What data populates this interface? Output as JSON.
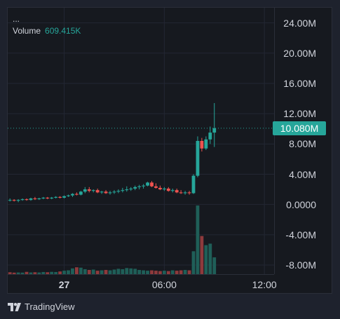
{
  "legend": {
    "dots": "...",
    "volume_label": "Volume",
    "volume_value": "609.415K"
  },
  "last_price": {
    "label": "10.080M",
    "value": 10.08
  },
  "colors": {
    "up": "#26a69a",
    "down": "#ef5350",
    "up_volume": "#1f5f58",
    "down_volume": "#8e3a3c",
    "grid": "#232733",
    "last_line": "#26a69a"
  },
  "brand": {
    "name": "TradingView",
    "icon": "tradingview-logo-icon"
  },
  "chart_data": {
    "type": "candlestick",
    "y_ticks": [
      {
        "label": "24.00M",
        "value": 24
      },
      {
        "label": "20.00M",
        "value": 20
      },
      {
        "label": "16.00M",
        "value": 16
      },
      {
        "label": "12.00M",
        "value": 12
      },
      {
        "label": "8.00M",
        "value": 8
      },
      {
        "label": "4.00M",
        "value": 4
      },
      {
        "label": "0.0000",
        "value": 0
      },
      {
        "label": "-4.00M",
        "value": -4
      },
      {
        "label": "-8.00M",
        "value": -8
      }
    ],
    "x_ticks": [
      {
        "label": "27",
        "bold": true,
        "index": 13
      },
      {
        "label": "06:00",
        "index": 37
      },
      {
        "label": "12:00",
        "index": 61
      }
    ],
    "ylim": [
      -9.2,
      26.0
    ],
    "bar_count": 66,
    "candles": [
      {
        "o": 0.6,
        "h": 0.8,
        "l": 0.4,
        "c": 0.6
      },
      {
        "o": 0.6,
        "h": 0.7,
        "l": 0.4,
        "c": 0.5
      },
      {
        "o": 0.5,
        "h": 0.7,
        "l": 0.3,
        "c": 0.6
      },
      {
        "o": 0.6,
        "h": 0.8,
        "l": 0.5,
        "c": 0.7
      },
      {
        "o": 0.7,
        "h": 0.8,
        "l": 0.5,
        "c": 0.6
      },
      {
        "o": 0.6,
        "h": 0.9,
        "l": 0.5,
        "c": 0.8
      },
      {
        "o": 0.8,
        "h": 1.0,
        "l": 0.6,
        "c": 0.7
      },
      {
        "o": 0.7,
        "h": 0.9,
        "l": 0.6,
        "c": 0.8
      },
      {
        "o": 0.8,
        "h": 1.0,
        "l": 0.7,
        "c": 0.9
      },
      {
        "o": 0.9,
        "h": 1.0,
        "l": 0.7,
        "c": 0.8
      },
      {
        "o": 0.8,
        "h": 1.0,
        "l": 0.7,
        "c": 0.9
      },
      {
        "o": 0.9,
        "h": 1.1,
        "l": 0.8,
        "c": 1.0
      },
      {
        "o": 1.0,
        "h": 1.1,
        "l": 0.8,
        "c": 0.9
      },
      {
        "o": 0.9,
        "h": 1.2,
        "l": 0.8,
        "c": 1.1
      },
      {
        "o": 1.1,
        "h": 1.3,
        "l": 1.0,
        "c": 1.2
      },
      {
        "o": 1.2,
        "h": 1.5,
        "l": 1.0,
        "c": 1.4
      },
      {
        "o": 1.4,
        "h": 1.6,
        "l": 1.2,
        "c": 1.3
      },
      {
        "o": 1.3,
        "h": 1.8,
        "l": 1.2,
        "c": 1.7
      },
      {
        "o": 1.7,
        "h": 2.3,
        "l": 1.5,
        "c": 2.0
      },
      {
        "o": 2.0,
        "h": 2.3,
        "l": 1.6,
        "c": 1.8
      },
      {
        "o": 1.8,
        "h": 2.0,
        "l": 1.6,
        "c": 1.9
      },
      {
        "o": 1.9,
        "h": 2.1,
        "l": 1.5,
        "c": 1.6
      },
      {
        "o": 1.6,
        "h": 1.8,
        "l": 1.4,
        "c": 1.7
      },
      {
        "o": 1.7,
        "h": 1.9,
        "l": 1.4,
        "c": 1.5
      },
      {
        "o": 1.5,
        "h": 1.8,
        "l": 1.3,
        "c": 1.6
      },
      {
        "o": 1.6,
        "h": 1.9,
        "l": 1.4,
        "c": 1.7
      },
      {
        "o": 1.7,
        "h": 2.0,
        "l": 1.5,
        "c": 1.8
      },
      {
        "o": 1.8,
        "h": 2.2,
        "l": 1.6,
        "c": 1.9
      },
      {
        "o": 1.9,
        "h": 2.4,
        "l": 1.7,
        "c": 2.0
      },
      {
        "o": 2.0,
        "h": 2.3,
        "l": 1.8,
        "c": 2.1
      },
      {
        "o": 2.1,
        "h": 2.5,
        "l": 1.9,
        "c": 2.3
      },
      {
        "o": 2.3,
        "h": 2.6,
        "l": 2.0,
        "c": 2.4
      },
      {
        "o": 2.4,
        "h": 2.7,
        "l": 2.1,
        "c": 2.5
      },
      {
        "o": 2.5,
        "h": 3.0,
        "l": 2.4,
        "c": 2.9
      },
      {
        "o": 2.9,
        "h": 3.1,
        "l": 2.3,
        "c": 2.4
      },
      {
        "o": 2.4,
        "h": 2.8,
        "l": 2.1,
        "c": 2.2
      },
      {
        "o": 2.2,
        "h": 2.5,
        "l": 1.9,
        "c": 2.0
      },
      {
        "o": 2.0,
        "h": 2.3,
        "l": 1.8,
        "c": 2.1
      },
      {
        "o": 2.1,
        "h": 2.3,
        "l": 1.7,
        "c": 1.8
      },
      {
        "o": 1.8,
        "h": 2.1,
        "l": 1.6,
        "c": 1.9
      },
      {
        "o": 1.9,
        "h": 2.1,
        "l": 1.5,
        "c": 1.6
      },
      {
        "o": 1.6,
        "h": 1.9,
        "l": 1.4,
        "c": 1.5
      },
      {
        "o": 1.5,
        "h": 1.8,
        "l": 1.3,
        "c": 1.6
      },
      {
        "o": 1.6,
        "h": 1.8,
        "l": 1.3,
        "c": 1.5
      },
      {
        "o": 1.5,
        "h": 4.0,
        "l": 1.4,
        "c": 3.8
      },
      {
        "o": 3.8,
        "h": 9.0,
        "l": 3.6,
        "c": 8.4
      },
      {
        "o": 8.4,
        "h": 8.8,
        "l": 7.0,
        "c": 7.4
      },
      {
        "o": 7.4,
        "h": 9.0,
        "l": 7.2,
        "c": 8.6
      },
      {
        "o": 8.6,
        "h": 10.3,
        "l": 8.0,
        "c": 9.5
      },
      {
        "o": 9.5,
        "h": 13.4,
        "l": 7.6,
        "c": 10.08
      }
    ],
    "candle_start_index": 0,
    "volume_series": [
      0.25,
      0.2,
      0.22,
      0.2,
      0.3,
      0.22,
      0.25,
      0.22,
      0.28,
      0.25,
      0.3,
      0.28,
      0.35,
      0.45,
      0.5,
      0.75,
      0.9,
      0.85,
      0.65,
      0.55,
      0.6,
      0.45,
      0.5,
      0.55,
      0.5,
      0.6,
      0.7,
      0.65,
      0.8,
      0.75,
      0.7,
      0.55,
      0.5,
      0.45,
      0.5,
      0.45,
      0.4,
      0.45,
      0.4,
      0.5,
      0.45,
      0.5,
      0.55,
      0.5,
      3.0,
      9.0,
      5.0,
      3.8,
      4.0,
      2.2
    ],
    "volume_max_height_fraction": 0.92,
    "volume_directions": [
      "d",
      "d",
      "u",
      "u",
      "d",
      "u",
      "d",
      "u",
      "u",
      "d",
      "u",
      "u",
      "d",
      "u",
      "u",
      "u",
      "d",
      "u",
      "u",
      "d",
      "u",
      "d",
      "u",
      "d",
      "u",
      "u",
      "u",
      "u",
      "u",
      "u",
      "u",
      "u",
      "u",
      "u",
      "d",
      "d",
      "d",
      "u",
      "d",
      "u",
      "d",
      "d",
      "u",
      "d",
      "u",
      "u",
      "d",
      "u",
      "u",
      "u"
    ]
  }
}
